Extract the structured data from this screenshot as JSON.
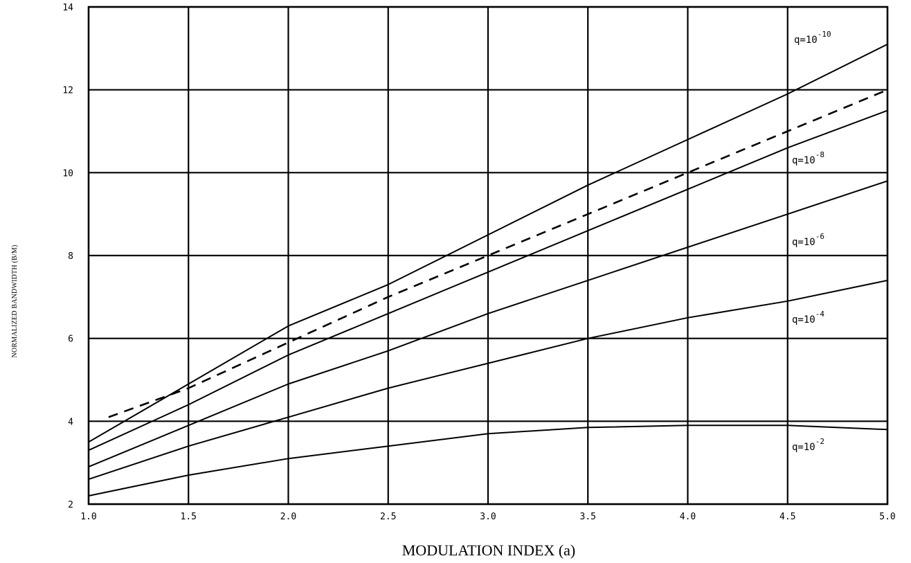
{
  "chart_data": {
    "type": "line",
    "title": "",
    "xlabel": "MODULATION INDEX (a)",
    "ylabel": "NORMALIZED BANDWIDTH (B/M)",
    "xlim": [
      1.0,
      5.0
    ],
    "ylim": [
      2,
      14
    ],
    "grid": true,
    "x_ticks": [
      "1.0",
      "1.5",
      "2.0",
      "2.5",
      "3.0",
      "3.5",
      "4.0",
      "4.5",
      "5.0"
    ],
    "y_ticks": [
      "2",
      "4",
      "6",
      "8",
      "10",
      "12",
      "14"
    ],
    "series": [
      {
        "name": "q=10^-10",
        "label_base": "q=10",
        "label_exp": "-10",
        "style": "solid",
        "x": [
          1.0,
          1.5,
          2.0,
          2.5,
          3.0,
          3.5,
          4.0,
          4.5,
          5.0
        ],
        "y": [
          3.5,
          4.9,
          6.3,
          7.3,
          8.5,
          9.7,
          10.8,
          11.9,
          13.1
        ]
      },
      {
        "name": "dashed",
        "label_base": "",
        "label_exp": "",
        "style": "dashed",
        "x": [
          1.1,
          1.5,
          2.0,
          2.5,
          3.0,
          3.5,
          4.0,
          4.5,
          5.0
        ],
        "y": [
          4.1,
          4.8,
          5.9,
          7.0,
          8.0,
          9.0,
          10.0,
          11.0,
          12.0
        ]
      },
      {
        "name": "q=10^-8",
        "label_base": "q=10",
        "label_exp": "-8",
        "style": "solid",
        "x": [
          1.0,
          1.5,
          2.0,
          2.5,
          3.0,
          3.5,
          4.0,
          4.5,
          5.0
        ],
        "y": [
          3.3,
          4.4,
          5.6,
          6.6,
          7.6,
          8.6,
          9.6,
          10.6,
          11.5
        ]
      },
      {
        "name": "q=10^-6",
        "label_base": "q=10",
        "label_exp": "-6",
        "style": "solid",
        "x": [
          1.0,
          1.5,
          2.0,
          2.5,
          3.0,
          3.5,
          4.0,
          4.5,
          5.0
        ],
        "y": [
          2.9,
          3.9,
          4.9,
          5.7,
          6.6,
          7.4,
          8.2,
          9.0,
          9.8
        ]
      },
      {
        "name": "q=10^-4",
        "label_base": "q=10",
        "label_exp": "-4",
        "style": "solid",
        "x": [
          1.0,
          1.5,
          2.0,
          2.5,
          3.0,
          3.5,
          4.0,
          4.5,
          5.0
        ],
        "y": [
          2.6,
          3.4,
          4.1,
          4.8,
          5.4,
          6.0,
          6.5,
          6.9,
          7.4
        ]
      },
      {
        "name": "q=10^-2",
        "label_base": "q=10",
        "label_exp": "-2",
        "style": "solid",
        "x": [
          1.0,
          1.5,
          2.0,
          2.5,
          3.0,
          3.5,
          4.0,
          4.5,
          5.0
        ],
        "y": [
          2.2,
          2.7,
          3.1,
          3.4,
          3.7,
          3.85,
          3.9,
          3.9,
          3.8
        ]
      }
    ]
  }
}
